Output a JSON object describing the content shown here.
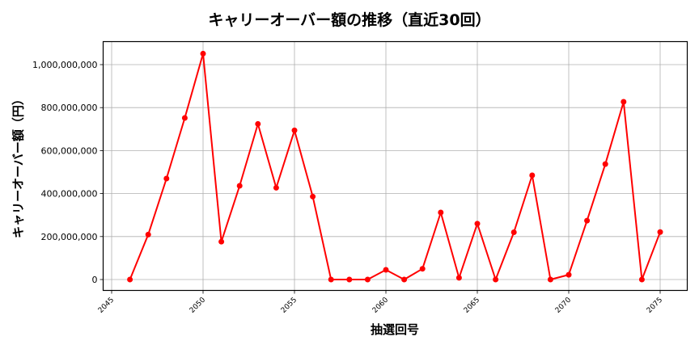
{
  "chart_data": {
    "type": "line",
    "title": "キャリーオーバー額の推移（直近30回）",
    "xlabel": "抽選回号",
    "ylabel": "キャリーオーバー額（円）",
    "x": [
      2046,
      2047,
      2048,
      2049,
      2050,
      2051,
      2052,
      2053,
      2054,
      2055,
      2056,
      2057,
      2058,
      2059,
      2060,
      2061,
      2062,
      2063,
      2064,
      2065,
      2066,
      2067,
      2068,
      2069,
      2070,
      2071,
      2072,
      2073,
      2074,
      2075
    ],
    "series": [
      {
        "name": "キャリーオーバー額",
        "color": "#ff0000",
        "marker": "circle",
        "values": [
          0,
          209000000,
          470000000,
          752000000,
          1051000000,
          176000000,
          436000000,
          724000000,
          427000000,
          694000000,
          386000000,
          0,
          0,
          0,
          45000000,
          0,
          50000000,
          312000000,
          8000000,
          260000000,
          0,
          220000000,
          485000000,
          0,
          22000000,
          274000000,
          537000000,
          827000000,
          0,
          221000000
        ]
      }
    ],
    "xticks": [
      2045,
      2050,
      2055,
      2060,
      2065,
      2070,
      2075
    ],
    "yticks": [
      0,
      200000000,
      400000000,
      600000000,
      800000000,
      1000000000
    ],
    "ytick_labels": [
      "0",
      "200,000,000",
      "400,000,000",
      "600,000,000",
      "800,000,000",
      "1,000,000,000"
    ],
    "xlim": [
      2044.6,
      2076.5
    ],
    "ylim": [
      -50000000,
      1110000000
    ],
    "grid": true,
    "legend": null
  }
}
